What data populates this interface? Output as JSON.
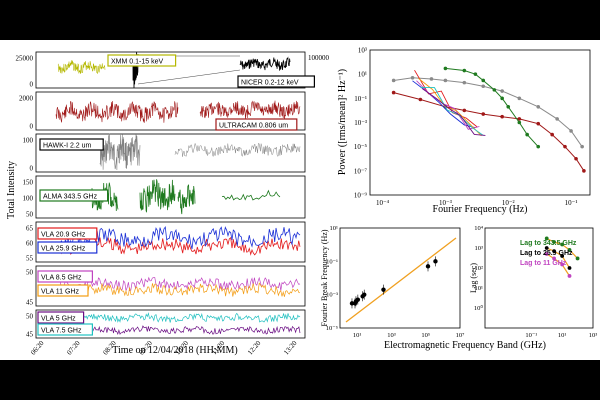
{
  "colors": {
    "background": "#000000",
    "xmm": "#b5b800",
    "nicer": "#000000",
    "ultracam": "#a01818",
    "hawki": "#808080",
    "alma": "#1f7a1f",
    "vla209": "#e31a1c",
    "vla259": "#1a2fd6",
    "vla85": "#c044c0",
    "vla11": "#f39c12",
    "vla5": "#20c0c0",
    "vla75": "#6a0d83",
    "model": "#f0a020"
  },
  "timeseries": {
    "ylabel": "Total Intensity",
    "xlabel": "Time on 12/04/2018 (HH:MM)",
    "xticks": [
      "06:20",
      "07:20",
      "08:20",
      "09:20",
      "10:20",
      "11:20",
      "12:20",
      "13:20"
    ],
    "panels": [
      {
        "id": "xray",
        "labels": [
          "XMM 0.1-15 keV",
          "NICER 0.2-12 keV"
        ],
        "left_ticks": [
          "25000",
          "0"
        ],
        "right_ticks": [
          "100000",
          "0"
        ]
      },
      {
        "id": "ultracam",
        "labels": [
          "ULTRACAM 0.806 um"
        ],
        "left_ticks": [
          "2000",
          "0"
        ]
      },
      {
        "id": "hawki",
        "labels": [
          "HAWK-I 2.2 um"
        ],
        "left_ticks": [
          "100",
          "0"
        ]
      },
      {
        "id": "alma",
        "labels": [
          "ALMA 343.5 GHz"
        ],
        "left_ticks": [
          "150",
          "100",
          "50"
        ]
      },
      {
        "id": "vla_hi",
        "labels": [
          "VLA 20.9 GHz",
          "VLA 25.9 GHz"
        ],
        "left_ticks": [
          "65",
          "60",
          "55"
        ]
      },
      {
        "id": "vla_mid",
        "labels": [
          "VLA 8.5 GHz",
          "VLA 11 GHz"
        ],
        "left_ticks": [
          "50",
          "45"
        ]
      },
      {
        "id": "vla_lo",
        "labels": [
          "VLA 5 GHz",
          "VLA 7.5 GHz"
        ],
        "left_ticks": [
          "50",
          "45"
        ]
      }
    ]
  },
  "psd": {
    "ylabel": "Power ([rms/mean]² Hz⁻¹)",
    "xlabel": "Fourier Frequency (Hz)",
    "xticks": [
      "10⁻⁴",
      "10⁻³",
      "10⁻²",
      "10⁻¹"
    ],
    "yticks": [
      "10³",
      "10¹",
      "10⁻¹",
      "10⁻³",
      "10⁻⁵",
      "10⁻⁷",
      "10⁻⁹"
    ]
  },
  "chart_data": [
    {
      "type": "line",
      "title": "",
      "xlabel": "Time on 12/04/2018 (HH:MM)",
      "ylabel": "Total Intensity",
      "categories": [
        "06:20",
        "07:20",
        "08:20",
        "09:20",
        "10:20",
        "11:20",
        "12:20",
        "13:20"
      ],
      "series": [
        {
          "name": "XMM 0.1-15 keV"
        },
        {
          "name": "NICER 0.2-12 keV"
        },
        {
          "name": "ULTRACAM 0.806 um"
        },
        {
          "name": "HAWK-I 2.2 um"
        },
        {
          "name": "ALMA 343.5 GHz"
        },
        {
          "name": "VLA 20.9 GHz"
        },
        {
          "name": "VLA 25.9 GHz"
        },
        {
          "name": "VLA 8.5 GHz"
        },
        {
          "name": "VLA 11 GHz"
        },
        {
          "name": "VLA 5 GHz"
        },
        {
          "name": "VLA 7.5 GHz"
        }
      ]
    },
    {
      "type": "line",
      "title": "",
      "xlabel": "Fourier Frequency (Hz)",
      "ylabel": "Power ([rms/mean]² Hz⁻¹)",
      "xscale": "log",
      "yscale": "log",
      "xlim": [
        0.0001,
        0.2
      ],
      "ylim": [
        1e-09,
        1000
      ],
      "series": [
        {
          "color": "gray",
          "x": [
            0.00015,
            0.0003,
            0.0006,
            0.001,
            0.002,
            0.004,
            0.008,
            0.015,
            0.03,
            0.06,
            0.1,
            0.15
          ],
          "y": [
            3,
            5,
            4,
            3,
            2,
            1,
            0.4,
            0.1,
            0.02,
            0.002,
            0.0002,
            1e-05
          ]
        },
        {
          "color": "darkred",
          "x": [
            0.00015,
            0.0004,
            0.001,
            0.002,
            0.004,
            0.008,
            0.015,
            0.03,
            0.05,
            0.08,
            0.12,
            0.16
          ],
          "y": [
            0.3,
            0.08,
            0.02,
            0.01,
            0.005,
            0.003,
            0.002,
            0.0008,
            0.0001,
            1e-05,
            1e-06,
            1e-07
          ]
        },
        {
          "color": "green",
          "x": [
            0.001,
            0.002,
            0.003,
            0.004,
            0.006,
            0.008,
            0.01,
            0.015,
            0.02,
            0.03
          ],
          "y": [
            30,
            20,
            10,
            3,
            0.5,
            0.1,
            0.02,
            0.001,
            0.0001,
            1e-05
          ]
        }
      ]
    },
    {
      "type": "scatter",
      "title": "",
      "xlabel": "Electromagnetic Frequency Band (GHz)",
      "ylabel": "Fourier Break Frequency (Hz)",
      "xscale": "log",
      "yscale": "log",
      "xlim": [
        1,
        10000000
      ],
      "ylim": [
        1e-05,
        10
      ],
      "xticks": [
        "10¹",
        "10³",
        "10⁵",
        "10⁷"
      ],
      "yticks": [
        "10¹",
        "10⁻¹",
        "10⁻³",
        "10⁻⁵"
      ],
      "x": [
        5,
        7.5,
        8.5,
        11,
        20.9,
        25.9,
        343.5,
        136000.0,
        370000.0
      ],
      "y": [
        0.0003,
        0.0003,
        0.0004,
        0.0005,
        0.0008,
        0.001,
        0.002,
        0.05,
        0.1
      ]
    },
    {
      "type": "line",
      "title": "",
      "xlabel": "",
      "ylabel": "Lag (sec)",
      "xscale": "log",
      "yscale": "log",
      "xlim": [
        0.0001,
        1000
      ],
      "ylim": [
        0.1,
        10000
      ],
      "xticks": [
        "10⁻¹",
        "10¹",
        "10³"
      ],
      "yticks": [
        "10⁴",
        "10³",
        "10²",
        "10¹",
        "10⁰"
      ],
      "series": [
        {
          "name": "Lag to 343.5 GHz",
          "x": [
            1,
            3,
            10,
            30,
            100
          ],
          "y": [
            3000,
            2000,
            1500,
            800,
            300
          ]
        },
        {
          "name": "Lag to 25.9 GHz",
          "x": [
            1,
            3,
            10,
            30
          ],
          "y": [
            1000,
            700,
            400,
            100
          ]
        },
        {
          "name": "Lag to 11 GHz",
          "x": [
            1,
            3,
            10,
            30
          ],
          "y": [
            500,
            300,
            150,
            40
          ]
        }
      ]
    }
  ],
  "bottom": {
    "xlabel": "Electromagnetic Frequency Band (GHz)"
  }
}
